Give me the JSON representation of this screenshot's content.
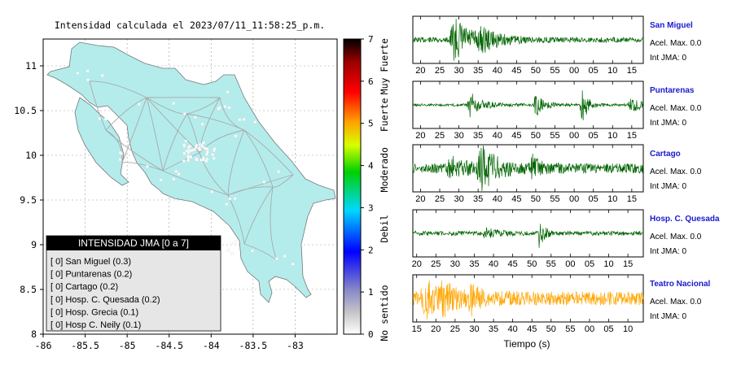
{
  "map": {
    "title": "Intensidad calculada el 2023/07/11_11:58:25_p.m.",
    "x_ticks": [
      "-86",
      "-85.5",
      "-85",
      "-84.5",
      "-84",
      "-83.5",
      "-83"
    ],
    "y_ticks": [
      "11",
      "10.5",
      "10",
      "9.5",
      "9",
      "8.5",
      "8"
    ],
    "xlim": [
      -86,
      -82.5
    ],
    "ylim": [
      8,
      11.3
    ],
    "land_color": "#b4ecec",
    "road_color": "#a9a9a9"
  },
  "colorbar": {
    "ticks": [
      "0",
      "1",
      "2",
      "3",
      "4",
      "5",
      "6",
      "7"
    ],
    "range": [
      0,
      7
    ],
    "labels": [
      "No sentido",
      "Debil",
      "Moderado",
      "Fuerte",
      "Muy Fuerte"
    ]
  },
  "legend": {
    "title": "INTENSIDAD JMA [0 a 7]",
    "items": [
      "[ 0]  San Miguel (0.3)",
      "[ 0]  Puntarenas (0.2)",
      "[ 0]  Cartago (0.2)",
      "[ 0]  Hosp. C. Quesada (0.2)",
      "[ 0]  Hosp. Grecia (0.1)",
      "[ 0]  Hosp C. Neily (0.1)"
    ]
  },
  "chart_data": {
    "type": "line",
    "xlabel": "Tiempo (s)",
    "stations": [
      {
        "name": "San Miguel",
        "accel": "Acel. Max. 0.0",
        "int": "Int JMA: 0",
        "ticks": [
          "20",
          "25",
          "30",
          "35",
          "40",
          "45",
          "50",
          "55",
          "00",
          "05",
          "10",
          "15"
        ],
        "start": 18,
        "color": "#006400",
        "bursts": [
          [
            29,
            0.9,
            5
          ],
          [
            36,
            0.35,
            4
          ]
        ],
        "noise": 0.12
      },
      {
        "name": "Puntarenas",
        "accel": "Acel. Max. 0.0",
        "int": "Int JMA: 0",
        "ticks": [
          "20",
          "25",
          "30",
          "35",
          "40",
          "45",
          "50",
          "55",
          "00",
          "05",
          "10",
          "15"
        ],
        "start": 18,
        "color": "#006400",
        "bursts": [
          [
            33,
            0.55,
            3
          ],
          [
            50,
            0.55,
            2
          ],
          [
            62,
            0.9,
            1.5
          ],
          [
            75,
            0.35,
            3
          ]
        ],
        "noise": 0.06
      },
      {
        "name": "Cartago",
        "accel": "Acel. Max. 0.0",
        "int": "Int JMA: 0",
        "ticks": [
          "20",
          "25",
          "30",
          "35",
          "40",
          "45",
          "50",
          "55",
          "00",
          "05",
          "10",
          "15"
        ],
        "start": 18,
        "color": "#006400",
        "bursts": [
          [
            36,
            0.9,
            4
          ],
          [
            28,
            0.4,
            4
          ],
          [
            49,
            0.45,
            2
          ]
        ],
        "noise": 0.22
      },
      {
        "name": "Hosp. C. Quesada",
        "accel": "Acel. Max. 0.0",
        "int": "Int JMA: 0",
        "ticks": [
          "20",
          "25",
          "30",
          "35",
          "40",
          "45",
          "50",
          "55",
          "00",
          "05",
          "10",
          "15"
        ],
        "start": 14,
        "color": "#006400",
        "bursts": [
          [
            47,
            0.9,
            1
          ],
          [
            33,
            0.2,
            3
          ]
        ],
        "noise": 0.1
      },
      {
        "name": "Teatro Nacional",
        "accel": "Acel. Max. 0.0",
        "int": "Int JMA: 0",
        "ticks": [
          "15",
          "20",
          "25",
          "30",
          "35",
          "40",
          "45",
          "50",
          "55",
          "00",
          "05",
          "10"
        ],
        "start": 14,
        "color": "#ffa500",
        "bursts": [
          [
            17,
            0.85,
            3
          ],
          [
            29,
            0.6,
            2
          ],
          [
            22,
            0.5,
            3
          ]
        ],
        "noise": 0.32
      }
    ]
  }
}
